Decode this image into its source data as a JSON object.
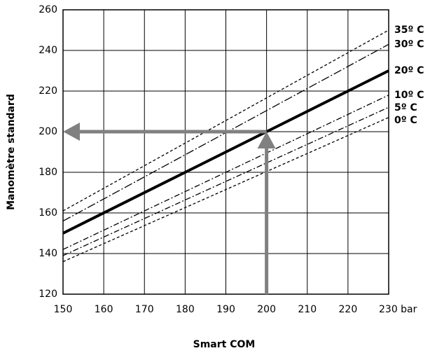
{
  "chart_data": {
    "type": "line",
    "xlabel": "Smart COM",
    "ylabel": "Manomètre standard",
    "x": [
      150,
      230
    ],
    "series": [
      {
        "name": "35º C",
        "color": "#000000",
        "values": [
          161,
          250
        ],
        "style": "dashed"
      },
      {
        "name": "30º C",
        "color": "#000000",
        "values": [
          156,
          243
        ],
        "style": "dashdot-long"
      },
      {
        "name": "20º C",
        "color": "#000000",
        "values": [
          150,
          230
        ],
        "style": "solid"
      },
      {
        "name": "10º C",
        "color": "#000000",
        "values": [
          142,
          218
        ],
        "style": "dashdot"
      },
      {
        "name": "5º C",
        "color": "#000000",
        "values": [
          139,
          212
        ],
        "style": "dashdot"
      },
      {
        "name": "0º C",
        "color": "#000000",
        "values": [
          136,
          207
        ],
        "style": "dashed"
      }
    ],
    "arrow": {
      "x": 200,
      "y": 200,
      "color": "#808080"
    },
    "xlim": [
      150,
      230
    ],
    "ylim": [
      120,
      260
    ],
    "xticks": [
      150,
      160,
      170,
      180,
      190,
      200,
      210,
      220,
      {
        "value": 230,
        "label": "230 bar"
      }
    ],
    "yticks": [
      120,
      140,
      160,
      180,
      200,
      220,
      240,
      260
    ],
    "grid": true
  }
}
